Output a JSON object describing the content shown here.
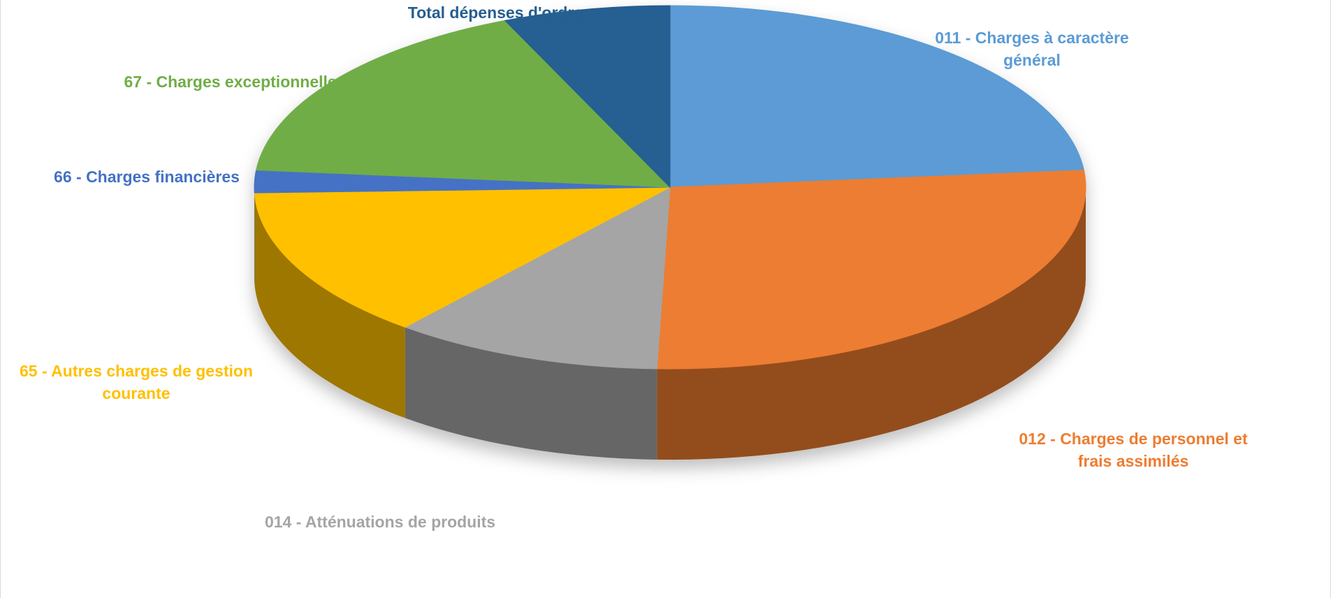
{
  "chart_data": {
    "type": "pie3d",
    "categories": [
      "011 - Charges à caractère général",
      "012 - Charges de personnel et frais assimilés",
      "014 - Atténuations de produits",
      "65 - Autres charges de gestion courante",
      "66 - Charges financières",
      "67 - Charges exceptionnelles",
      "Total dépenses d'ordre"
    ],
    "values": [
      23.5,
      27,
      10.5,
      13.5,
      2,
      17,
      6.5
    ],
    "colors": [
      "#5b9bd5",
      "#ed7d31",
      "#a5a5a5",
      "#ffc000",
      "#4472c4",
      "#70ad47",
      "#255e91"
    ]
  }
}
